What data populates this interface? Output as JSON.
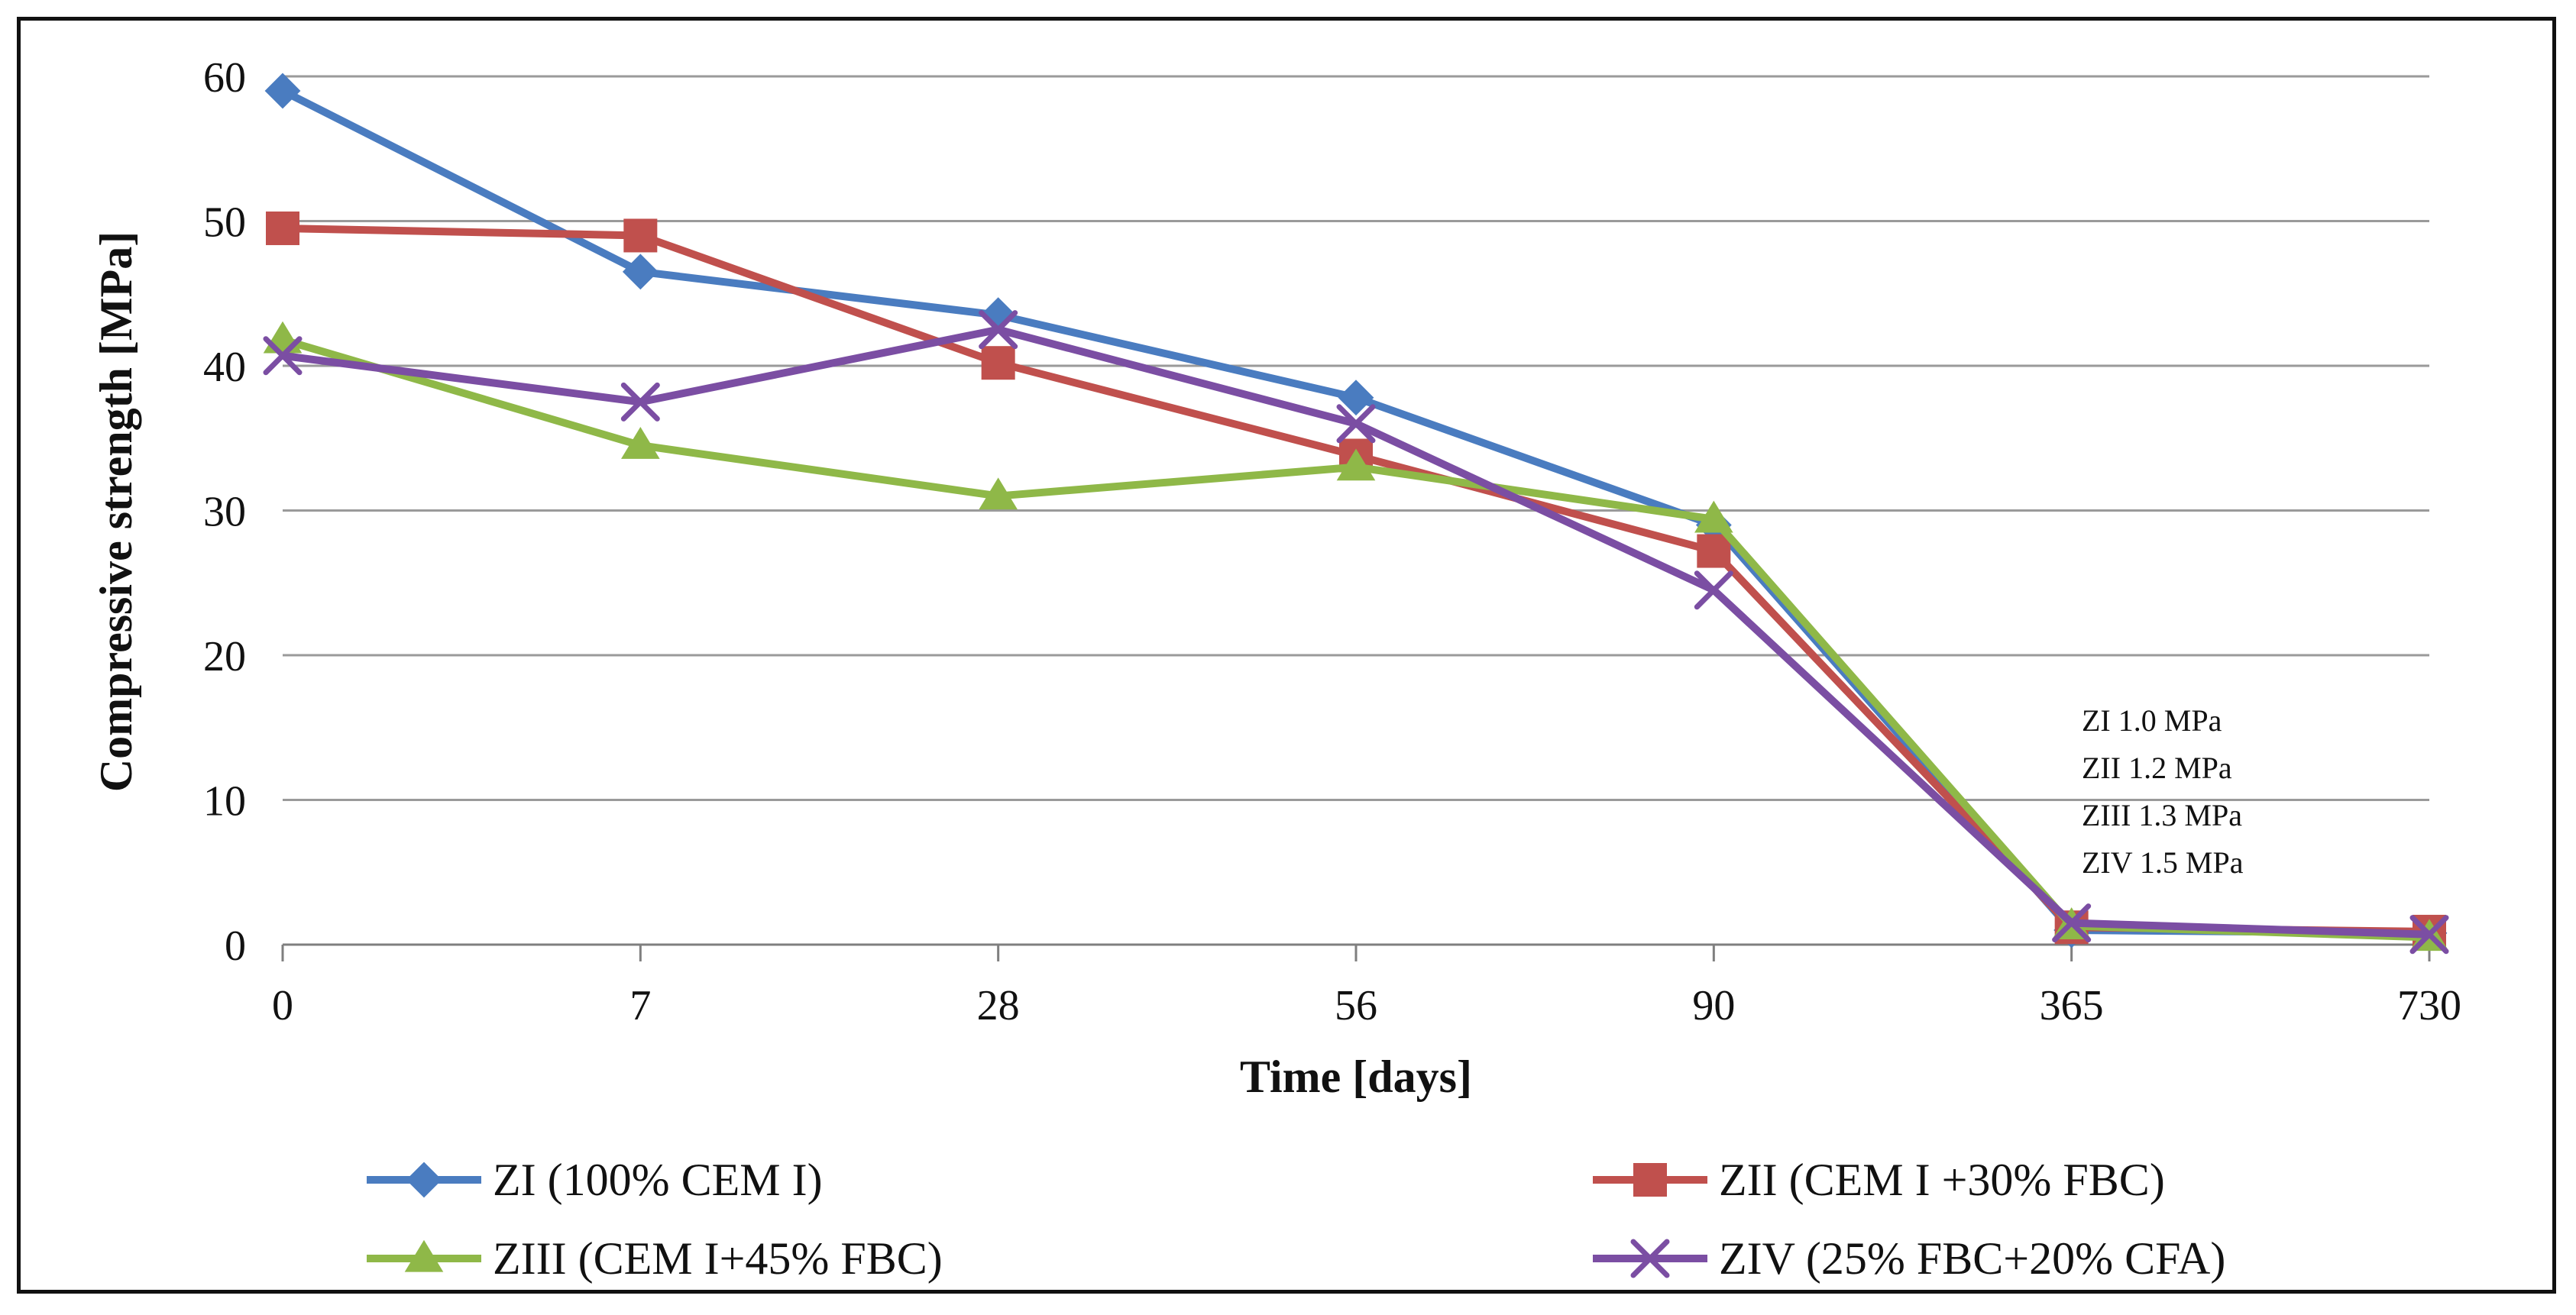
{
  "chart_data": {
    "type": "line",
    "title": "",
    "xlabel": "Time [days]",
    "ylabel": "Compressive strength [MPa]",
    "categories": [
      "0",
      "7",
      "28",
      "56",
      "90",
      "365",
      "730"
    ],
    "ylim": [
      0,
      60
    ],
    "yticks": [
      "0",
      "10",
      "20",
      "30",
      "40",
      "50",
      "60"
    ],
    "grid": "horizontal",
    "legend_position": "bottom",
    "series": [
      {
        "name": "ZI (100% CEM I)",
        "color": "#4a7cc0",
        "marker": "diamond",
        "values": [
          59.0,
          46.5,
          43.5,
          37.8,
          29.0,
          1.0,
          0.8
        ]
      },
      {
        "name": "ZII (CEM I +30% FBC)",
        "color": "#c0504d",
        "marker": "square",
        "values": [
          49.5,
          49.0,
          40.2,
          33.8,
          27.2,
          1.2,
          0.9
        ]
      },
      {
        "name": "ZIII (CEM I+45% FBC)",
        "color": "#8fb848",
        "marker": "triangle",
        "values": [
          41.8,
          34.5,
          31.0,
          33.0,
          29.4,
          1.3,
          0.5
        ]
      },
      {
        "name": "ZIV (25% FBC+20% CFA)",
        "color": "#7b4ea3",
        "marker": "x",
        "values": [
          40.7,
          37.5,
          42.5,
          36.0,
          24.5,
          1.5,
          0.7
        ]
      }
    ],
    "annotations": [
      "ZI 1.0 MPa",
      "ZII 1.2 MPa",
      "ZIII 1.3 MPa",
      "ZIV 1.5 MPa"
    ]
  }
}
